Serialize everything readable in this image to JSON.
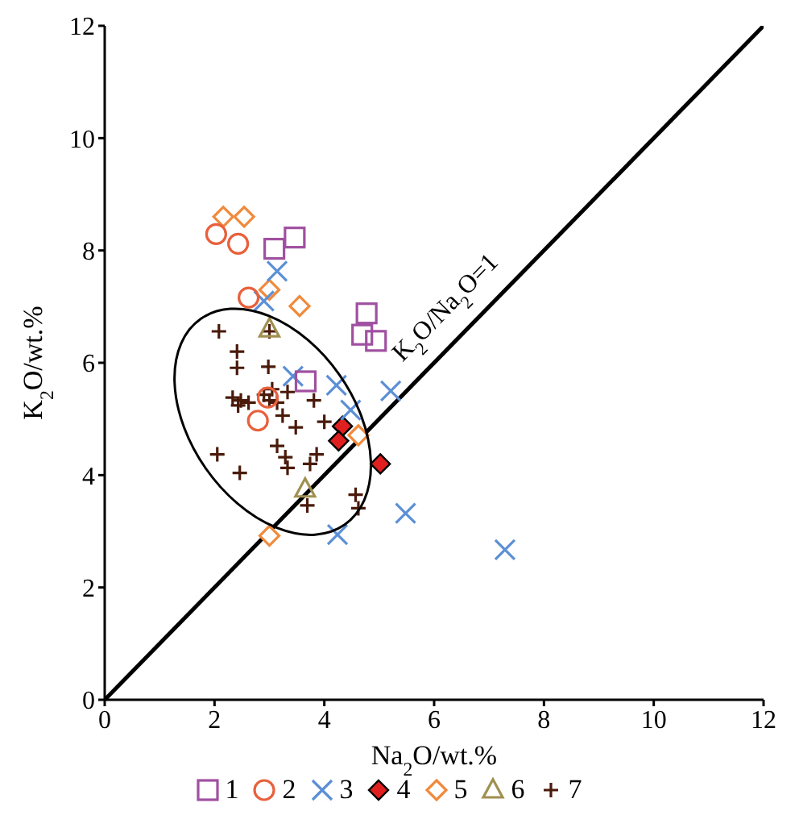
{
  "chart_data": {
    "type": "scatter",
    "xlabel": "Na$_{2}$O/wt.%",
    "ylabel": "K$_{2}$O/wt.%",
    "xlim": [
      0,
      12
    ],
    "ylim": [
      0,
      12
    ],
    "xticks": [
      0,
      2,
      4,
      6,
      8,
      10,
      12
    ],
    "yticks": [
      0,
      2,
      4,
      6,
      8,
      10,
      12
    ],
    "legend": "bottom",
    "series": [
      {
        "name": "1",
        "color": "#a050a0",
        "marker": "square",
        "x": [
          3.09,
          3.46,
          4.77,
          4.69,
          4.94,
          3.66
        ],
        "values": [
          8.03,
          8.23,
          6.88,
          6.5,
          6.39,
          5.67
        ]
      },
      {
        "name": "2",
        "color": "#e8603c",
        "marker": "circle",
        "x": [
          2.03,
          2.43,
          2.62,
          2.79,
          2.97
        ],
        "values": [
          8.29,
          8.12,
          7.16,
          4.97,
          5.38
        ]
      },
      {
        "name": "3",
        "color": "#5b8fd6",
        "marker": "cross",
        "x": [
          3.14,
          2.9,
          3.43,
          4.22,
          5.21,
          4.48,
          4.24,
          5.48,
          7.29
        ],
        "values": [
          7.63,
          7.1,
          5.76,
          5.6,
          5.5,
          5.16,
          2.94,
          3.32,
          2.67
        ]
      },
      {
        "name": "4",
        "color": "#e02020",
        "marker": "diamond-filled",
        "x": [
          4.33,
          4.26,
          5.02
        ],
        "values": [
          4.87,
          4.61,
          4.2
        ]
      },
      {
        "name": "5",
        "color": "#f08a3c",
        "marker": "diamond",
        "x": [
          2.16,
          2.54,
          3.0,
          3.55,
          4.62,
          3.0
        ],
        "values": [
          8.6,
          8.6,
          7.3,
          7.01,
          4.71,
          2.92
        ]
      },
      {
        "name": "6",
        "color": "#a09050",
        "marker": "triangle",
        "x": [
          3.0,
          3.65
        ],
        "values": [
          6.6,
          3.75
        ]
      },
      {
        "name": "7",
        "color": "#4a1a0a",
        "marker": "plus",
        "x": [
          2.08,
          3.0,
          2.41,
          2.41,
          2.98,
          3.33,
          2.33,
          2.48,
          2.62,
          2.43,
          2.9,
          3.0,
          3.14,
          3.05,
          3.81,
          3.24,
          3.48,
          4.0,
          2.05,
          2.46,
          3.14,
          3.29,
          3.33,
          3.74,
          3.86,
          3.69,
          4.57,
          4.62
        ],
        "values": [
          6.56,
          6.56,
          6.2,
          5.91,
          5.93,
          5.48,
          5.38,
          5.33,
          5.29,
          5.24,
          5.43,
          5.33,
          5.29,
          5.53,
          5.33,
          5.06,
          4.85,
          4.95,
          4.37,
          4.04,
          4.52,
          4.32,
          4.13,
          4.2,
          4.37,
          3.46,
          3.65,
          3.41
        ]
      },
      {
        "name": "K$_{2}$O/Na$_{2}$O=1",
        "type": "line",
        "color": "#000000",
        "x": [
          0,
          12
        ],
        "values": [
          0,
          12
        ]
      }
    ]
  }
}
